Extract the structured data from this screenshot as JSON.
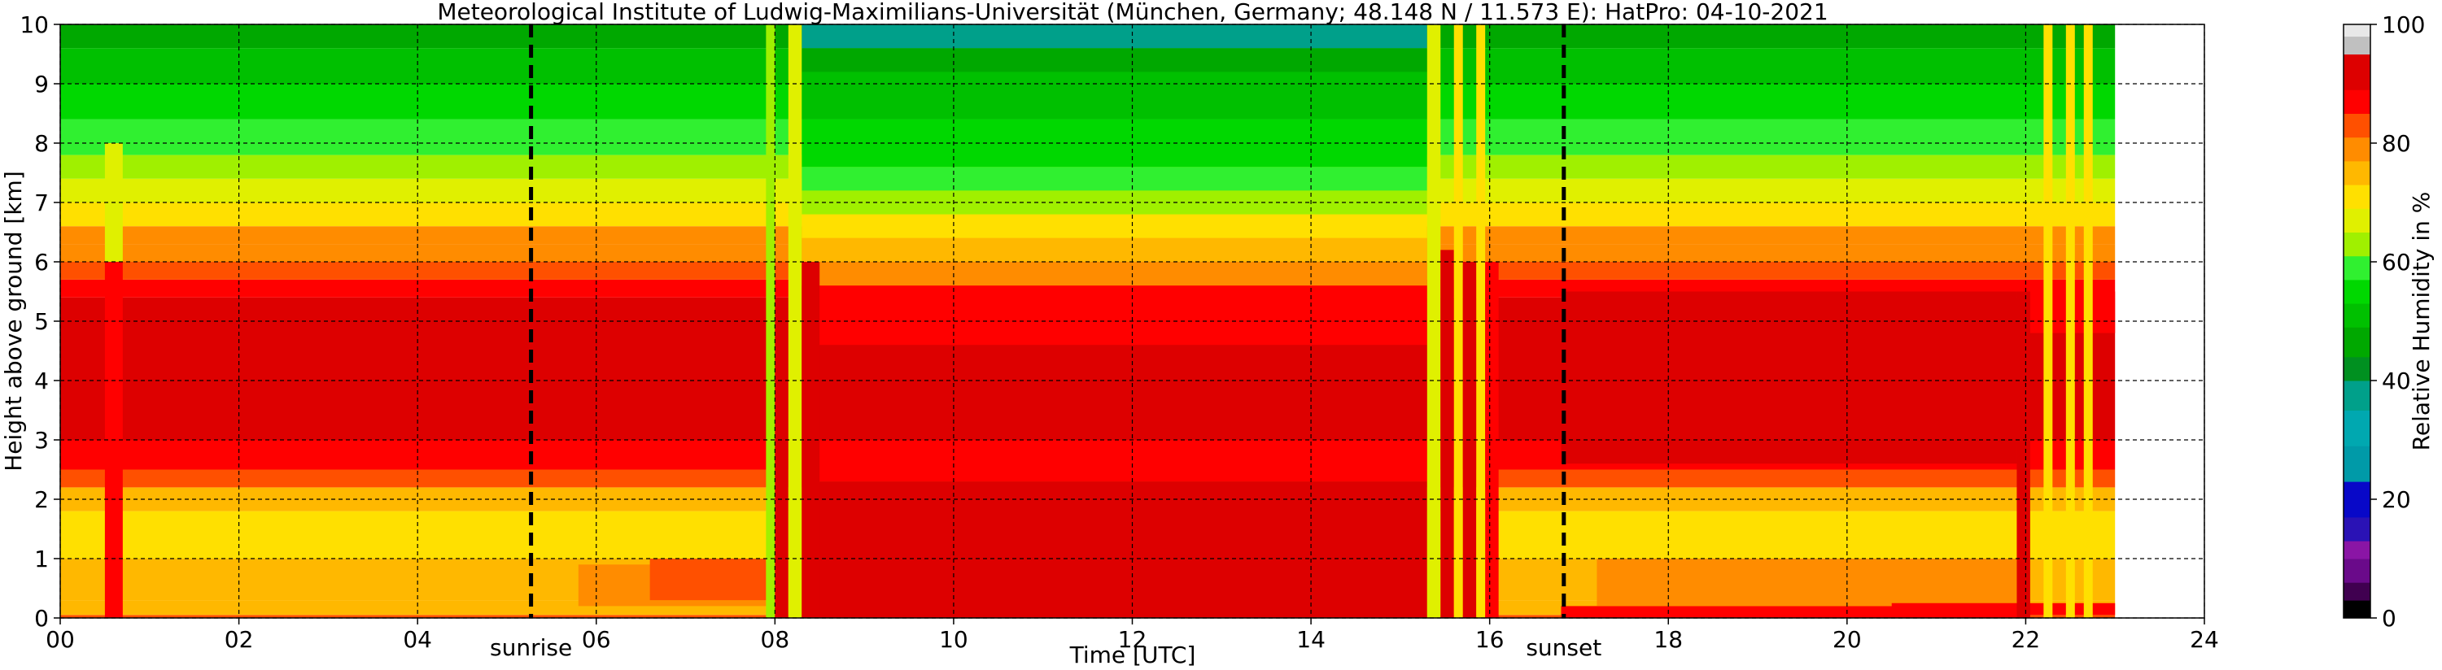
{
  "chart_data": {
    "type": "heatmap",
    "title": "Meteorological Institute of Ludwig-Maximilians-Universität (München, Germany; 48.148 N / 11.573 E):    HatPro: 04-10-2021",
    "xlabel": "Time [UTC]",
    "ylabel": "Height above ground [km]",
    "xlim": [
      0,
      24
    ],
    "ylim": [
      0,
      10
    ],
    "data_xmax": 23,
    "xticks": [
      "00",
      "02",
      "04",
      "06",
      "08",
      "10",
      "12",
      "14",
      "16",
      "18",
      "20",
      "22",
      "24"
    ],
    "yticks": [
      "0",
      "1",
      "2",
      "3",
      "4",
      "5",
      "6",
      "7",
      "8",
      "9",
      "10"
    ],
    "grid": true,
    "value_label": "Relative Humidity in %",
    "colorbar": {
      "label": "Relative Humidity in %",
      "range": [
        0,
        100
      ],
      "ticks": [
        "0",
        "20",
        "40",
        "60",
        "80",
        "100"
      ],
      "colors": [
        {
          "from": 0,
          "to": 3,
          "color": "#000000"
        },
        {
          "from": 3,
          "to": 6,
          "color": "#400050"
        },
        {
          "from": 6,
          "to": 10,
          "color": "#6a0a8a"
        },
        {
          "from": 10,
          "to": 13,
          "color": "#8a15a5"
        },
        {
          "from": 13,
          "to": 17,
          "color": "#2a12b5"
        },
        {
          "from": 17,
          "to": 23,
          "color": "#0808c8"
        },
        {
          "from": 23,
          "to": 29,
          "color": "#009aa8"
        },
        {
          "from": 29,
          "to": 35,
          "color": "#00a8b0"
        },
        {
          "from": 35,
          "to": 40,
          "color": "#00a08a"
        },
        {
          "from": 40,
          "to": 44,
          "color": "#009020"
        },
        {
          "from": 44,
          "to": 49,
          "color": "#00a800"
        },
        {
          "from": 49,
          "to": 53,
          "color": "#00c000"
        },
        {
          "from": 53,
          "to": 57,
          "color": "#00d800"
        },
        {
          "from": 57,
          "to": 61,
          "color": "#30f030"
        },
        {
          "from": 61,
          "to": 65,
          "color": "#a0f000"
        },
        {
          "from": 65,
          "to": 69,
          "color": "#e0f000"
        },
        {
          "from": 69,
          "to": 73,
          "color": "#ffe000"
        },
        {
          "from": 73,
          "to": 77,
          "color": "#ffb800"
        },
        {
          "from": 77,
          "to": 81,
          "color": "#ff8c00"
        },
        {
          "from": 81,
          "to": 85,
          "color": "#ff5000"
        },
        {
          "from": 85,
          "to": 89,
          "color": "#ff0000"
        },
        {
          "from": 89,
          "to": 95,
          "color": "#dd0000"
        },
        {
          "from": 95,
          "to": 98,
          "color": "#c0c0c0"
        },
        {
          "from": 98,
          "to": 100,
          "color": "#e8e8e8"
        }
      ]
    },
    "events": [
      {
        "label": "sunrise",
        "x": 5.27
      },
      {
        "label": "sunset",
        "x": 16.83
      }
    ],
    "profile": [
      {
        "y0": 0.0,
        "y1": 0.05,
        "value": 84
      },
      {
        "y0": 0.05,
        "y1": 0.3,
        "value": 76
      },
      {
        "y0": 0.3,
        "y1": 1.0,
        "value": 74
      },
      {
        "y0": 1.0,
        "y1": 1.8,
        "value": 72
      },
      {
        "y0": 1.8,
        "y1": 2.2,
        "value": 76
      },
      {
        "y0": 2.2,
        "y1": 2.5,
        "value": 83
      },
      {
        "y0": 2.5,
        "y1": 3.0,
        "value": 87
      },
      {
        "y0": 3.0,
        "y1": 5.4,
        "value": 91
      },
      {
        "y0": 5.4,
        "y1": 5.7,
        "value": 88
      },
      {
        "y0": 5.7,
        "y1": 6.0,
        "value": 84
      },
      {
        "y0": 6.0,
        "y1": 6.3,
        "value": 80
      },
      {
        "y0": 6.3,
        "y1": 6.6,
        "value": 78
      },
      {
        "y0": 6.6,
        "y1": 7.0,
        "value": 72
      },
      {
        "y0": 7.0,
        "y1": 7.4,
        "value": 67
      },
      {
        "y0": 7.4,
        "y1": 7.8,
        "value": 62
      },
      {
        "y0": 7.8,
        "y1": 8.4,
        "value": 58
      },
      {
        "y0": 8.4,
        "y1": 9.0,
        "value": 54
      },
      {
        "y0": 9.0,
        "y1": 9.6,
        "value": 51
      },
      {
        "y0": 9.6,
        "y1": 10.0,
        "value": 48
      }
    ],
    "regions": [
      {
        "x0": 5.8,
        "x1": 7.9,
        "y0": 0.2,
        "y1": 0.9,
        "value": 80
      },
      {
        "x0": 6.6,
        "x1": 7.9,
        "y0": 0.3,
        "y1": 1.0,
        "value": 84
      },
      {
        "x0": 8.3,
        "x1": 15.3,
        "y0": 0.0,
        "y1": 2.3,
        "value": 91
      },
      {
        "x0": 8.3,
        "x1": 15.3,
        "y0": 2.3,
        "y1": 2.6,
        "value": 88
      },
      {
        "x0": 8.3,
        "x1": 15.3,
        "y0": 4.6,
        "y1": 5.6,
        "value": 86
      },
      {
        "x0": 8.3,
        "x1": 15.3,
        "y0": 5.6,
        "y1": 6.0,
        "value": 80
      },
      {
        "x0": 8.3,
        "x1": 15.3,
        "y0": 6.0,
        "y1": 6.4,
        "value": 74
      },
      {
        "x0": 8.3,
        "x1": 15.3,
        "y0": 6.4,
        "y1": 6.8,
        "value": 69
      },
      {
        "x0": 8.3,
        "x1": 15.3,
        "y0": 6.8,
        "y1": 7.2,
        "value": 63
      },
      {
        "x0": 8.3,
        "x1": 15.3,
        "y0": 7.2,
        "y1": 7.6,
        "value": 59
      },
      {
        "x0": 8.3,
        "x1": 15.3,
        "y0": 7.6,
        "y1": 8.4,
        "value": 55
      },
      {
        "x0": 8.3,
        "x1": 15.3,
        "y0": 8.4,
        "y1": 9.2,
        "value": 50
      },
      {
        "x0": 8.3,
        "x1": 15.3,
        "y0": 9.2,
        "y1": 9.6,
        "value": 45
      },
      {
        "x0": 8.3,
        "x1": 15.3,
        "y0": 9.6,
        "y1": 10.0,
        "value": 36
      },
      {
        "x0": 16.8,
        "x1": 21.9,
        "y0": 0.0,
        "y1": 0.2,
        "value": 86
      },
      {
        "x0": 17.2,
        "x1": 21.9,
        "y0": 0.2,
        "y1": 1.0,
        "value": 78
      },
      {
        "x0": 16.8,
        "x1": 21.9,
        "y0": 2.6,
        "y1": 5.5,
        "value": 91
      },
      {
        "x0": 20.5,
        "x1": 23.0,
        "y0": 0.05,
        "y1": 0.25,
        "value": 85
      },
      {
        "x0": 22.0,
        "x1": 23.0,
        "y0": 4.8,
        "y1": 5.5,
        "value": 86
      },
      {
        "x0": 0.5,
        "x1": 0.7,
        "y0": 0.0,
        "y1": 6.0,
        "value": 86
      },
      {
        "x0": 0.5,
        "x1": 0.7,
        "y0": 6.0,
        "y1": 8.0,
        "value": 68
      },
      {
        "x0": 7.9,
        "x1": 8.0,
        "y0": 0.0,
        "y1": 10.0,
        "value": 62
      },
      {
        "x0": 8.0,
        "x1": 8.15,
        "y0": 0.0,
        "y1": 5.0,
        "value": 89
      },
      {
        "x0": 8.15,
        "x1": 8.3,
        "y0": 0.0,
        "y1": 10.0,
        "value": 66
      },
      {
        "x0": 8.3,
        "x1": 8.5,
        "y0": 0.0,
        "y1": 6.0,
        "value": 89
      },
      {
        "x0": 15.3,
        "x1": 15.45,
        "y0": 0.0,
        "y1": 10.0,
        "value": 66
      },
      {
        "x0": 15.45,
        "x1": 15.6,
        "y0": 0.0,
        "y1": 6.2,
        "value": 89
      },
      {
        "x0": 15.6,
        "x1": 15.7,
        "y0": 0.0,
        "y1": 10.0,
        "value": 70
      },
      {
        "x0": 15.7,
        "x1": 15.85,
        "y0": 0.0,
        "y1": 6.0,
        "value": 89
      },
      {
        "x0": 15.85,
        "x1": 15.95,
        "y0": 0.0,
        "y1": 10.0,
        "value": 72
      },
      {
        "x0": 15.95,
        "x1": 16.1,
        "y0": 0.0,
        "y1": 6.0,
        "value": 88
      },
      {
        "x0": 21.9,
        "x1": 22.05,
        "y0": 0.0,
        "y1": 5.5,
        "value": 90
      },
      {
        "x0": 22.2,
        "x1": 22.3,
        "y0": 0.0,
        "y1": 10.0,
        "value": 70
      },
      {
        "x0": 22.45,
        "x1": 22.55,
        "y0": 0.0,
        "y1": 10.0,
        "value": 70
      },
      {
        "x0": 22.65,
        "x1": 22.75,
        "y0": 0.0,
        "y1": 10.0,
        "value": 72
      }
    ]
  }
}
